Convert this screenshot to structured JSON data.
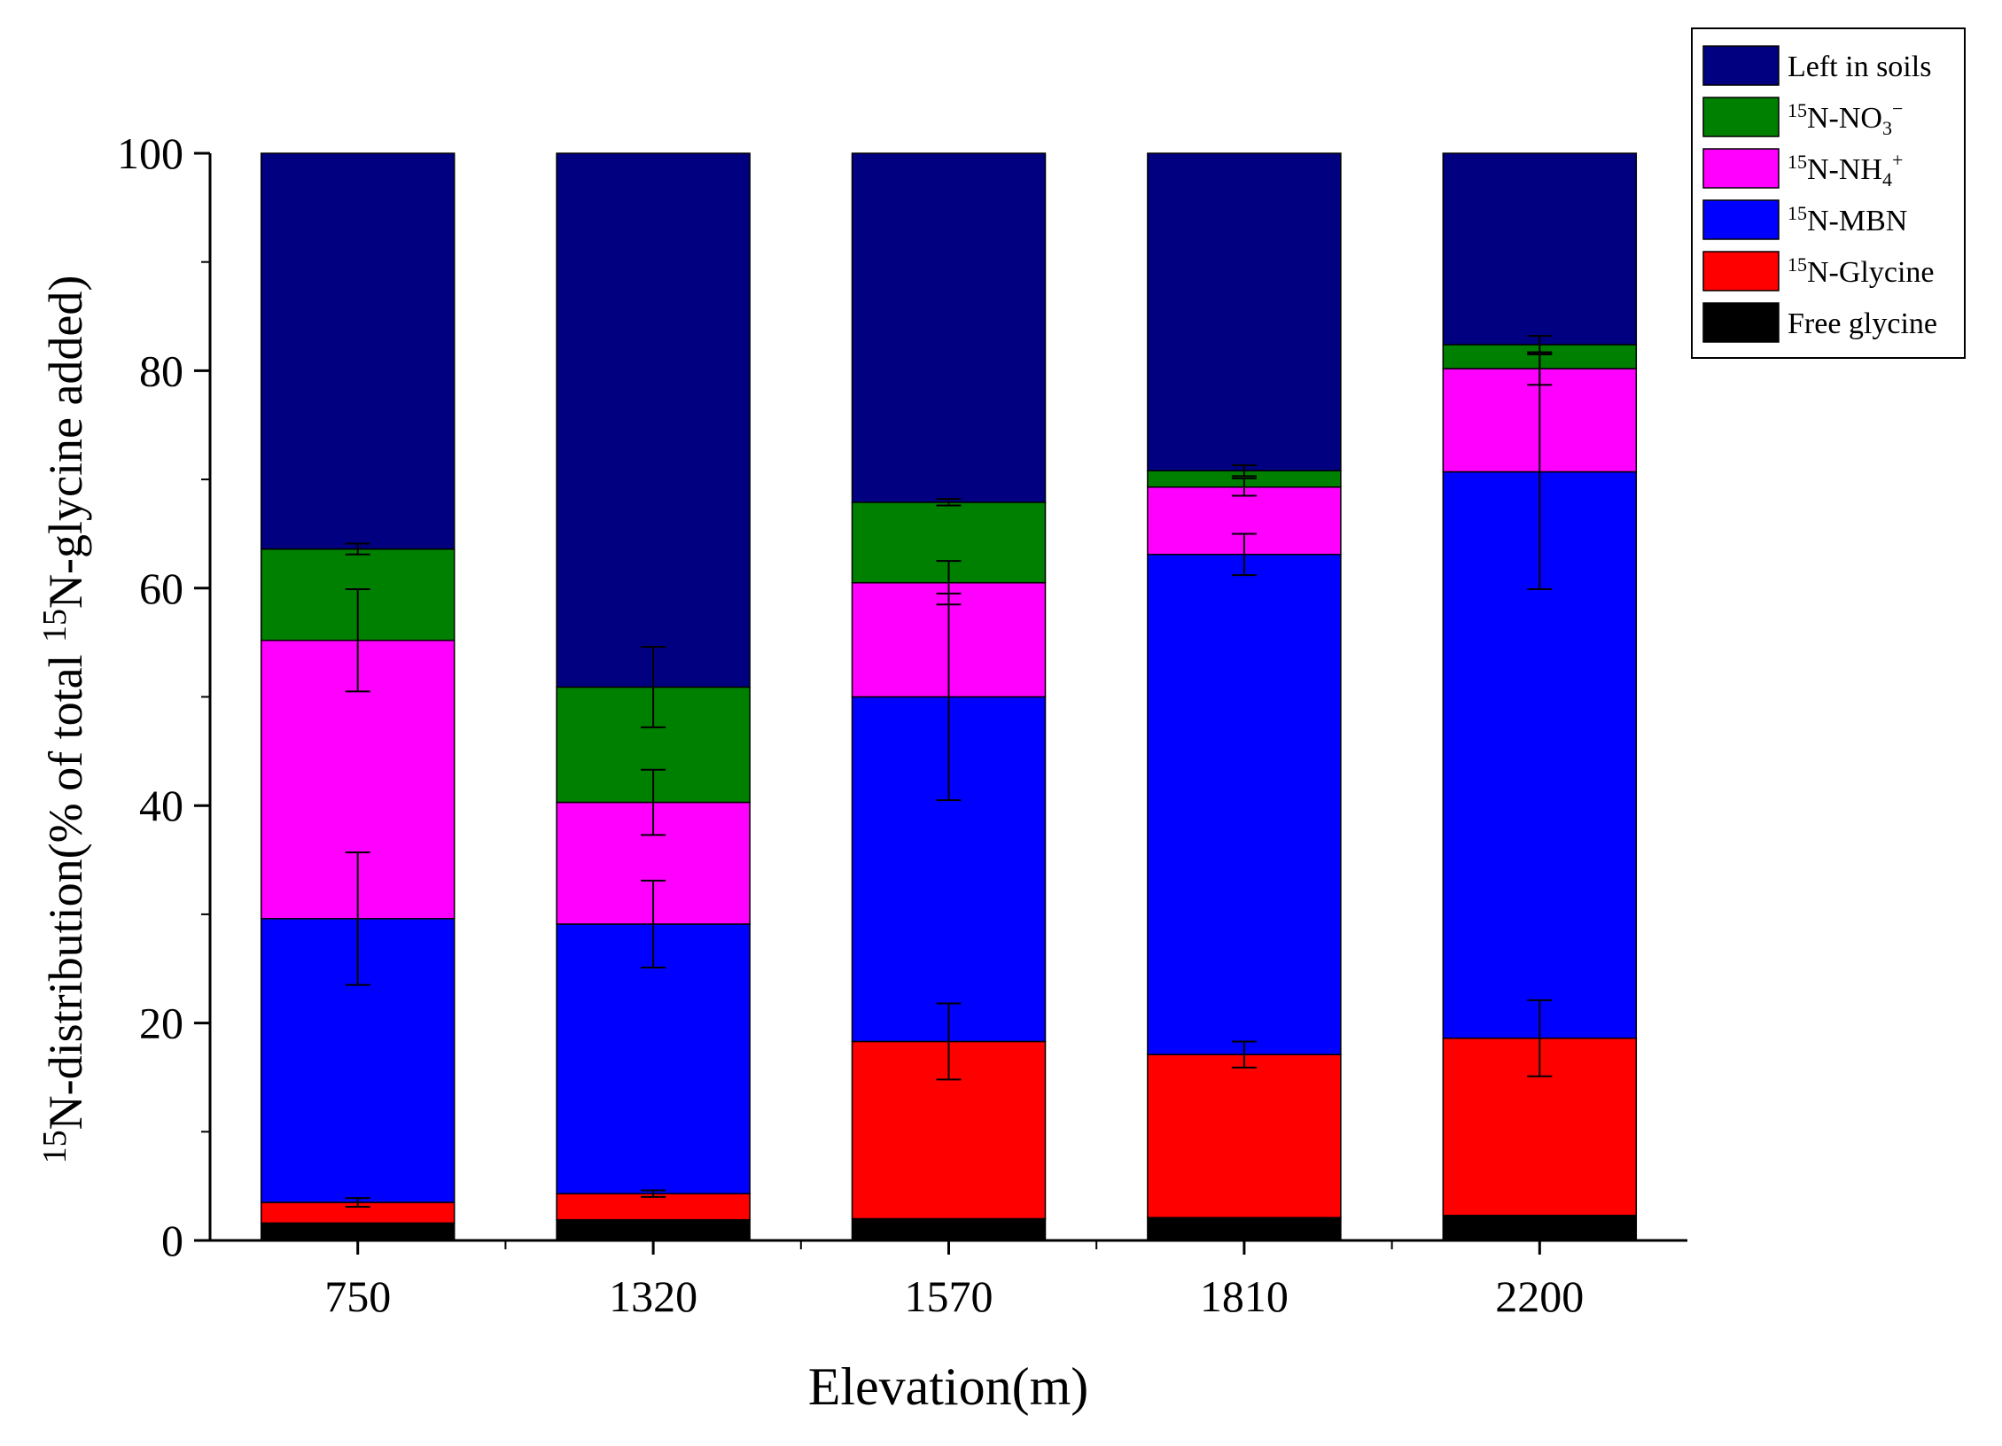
{
  "chart_data": {
    "type": "bar",
    "stacked": true,
    "title": "",
    "categories": [
      "750",
      "1320",
      "1570",
      "1810",
      "2200"
    ],
    "xlabel": "Elevation(m)",
    "ylabel": {
      "sup1": "15",
      "part1": "N-distribution(% of total ",
      "sup2": "15",
      "part2": "N-glycine added)"
    },
    "ylim": [
      0,
      100
    ],
    "yticks": [
      "0",
      "20",
      "40",
      "60",
      "80",
      "100"
    ],
    "legend_position": "top-right",
    "series": [
      {
        "name": "Free glycine",
        "label_sup": "",
        "label_main": "Free glycine",
        "label_sub": "",
        "label_tail": "",
        "color": "#000000",
        "values": [
          1.6,
          1.9,
          2.0,
          2.1,
          2.3
        ],
        "errors": [
          0,
          0,
          0,
          0,
          0
        ]
      },
      {
        "name": "15N-Glycine",
        "label_sup": "15",
        "label_main": "N-Glycine",
        "label_sub": "",
        "label_tail": "",
        "color": "#ff0000",
        "values": [
          1.9,
          2.4,
          16.3,
          15.0,
          16.3
        ],
        "errors": [
          0.4,
          0.3,
          3.5,
          1.2,
          3.5
        ]
      },
      {
        "name": "15N-MBN",
        "label_sup": "15",
        "label_main": "N-MBN",
        "label_sub": "",
        "label_tail": "",
        "color": "#0000ff",
        "values": [
          26.1,
          24.8,
          31.7,
          46.0,
          52.1
        ],
        "errors": [
          6.1,
          4.0,
          9.5,
          1.9,
          10.8
        ]
      },
      {
        "name": "15N-NH4+",
        "label_sup": "15",
        "label_main": "N-NH",
        "label_sub": "4",
        "label_tail": "+",
        "color": "#ff00ff",
        "values": [
          25.6,
          11.2,
          10.5,
          6.2,
          9.5
        ],
        "errors": [
          4.7,
          3.0,
          2.0,
          0.8,
          1.5
        ]
      },
      {
        "name": "15N-NO3-",
        "label_sup": "15",
        "label_main": "N-NO",
        "label_sub": "3",
        "label_tail": "−",
        "color": "#008000",
        "values": [
          8.4,
          10.6,
          7.4,
          1.5,
          2.2
        ],
        "errors": [
          0.5,
          3.7,
          0.3,
          0.5,
          0.8
        ]
      },
      {
        "name": "Left in soils",
        "label_sup": "",
        "label_main": "Left in soils",
        "label_sub": "",
        "label_tail": "",
        "color": "#000080",
        "values": [
          36.4,
          49.1,
          32.1,
          29.2,
          17.6
        ],
        "errors": [
          0,
          0,
          0,
          0,
          0
        ]
      }
    ]
  }
}
